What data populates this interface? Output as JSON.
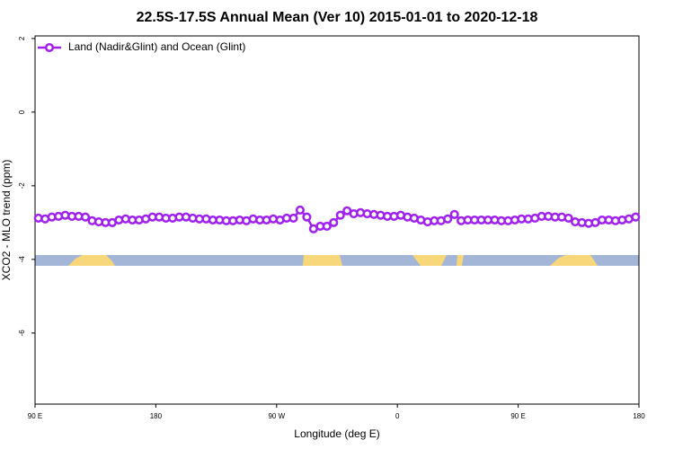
{
  "chart_data": {
    "type": "line",
    "title": "22.5S-17.5S Annual Mean (Ver 10)   2015-01-01 to 2020-12-18",
    "x_label": "Longitude (deg E)",
    "y_label": "XCO2 - MLO trend (ppm)",
    "x": [
      92.5,
      97.5,
      102.5,
      107.5,
      112.5,
      117.5,
      122.5,
      127.5,
      132.5,
      137.5,
      142.5,
      147.5,
      152.5,
      157.5,
      162.5,
      167.5,
      172.5,
      177.5,
      182.5,
      187.5,
      192.5,
      197.5,
      202.5,
      207.5,
      212.5,
      217.5,
      222.5,
      227.5,
      232.5,
      237.5,
      242.5,
      247.5,
      252.5,
      257.5,
      262.5,
      267.5,
      272.5,
      277.5,
      282.5,
      287.5,
      292.5,
      297.5,
      302.5,
      307.5,
      312.5,
      317.5,
      322.5,
      327.5,
      332.5,
      337.5,
      342.5,
      347.5,
      352.5,
      357.5,
      362.5,
      367.5,
      372.5,
      377.5,
      382.5,
      387.5,
      392.5,
      397.5,
      402.5,
      407.5,
      412.5,
      417.5,
      422.5,
      427.5,
      432.5,
      437.5,
      442.5,
      447.5,
      452.5,
      457.5,
      462.5,
      467.5,
      472.5,
      477.5,
      482.5,
      487.5,
      492.5,
      497.5,
      502.5,
      507.5,
      512.5,
      517.5,
      522.5,
      527.5,
      532.5,
      537.5
    ],
    "series": [
      {
        "name": "Land (Nadir&Glint) and Ocean (Glint)",
        "color": "#a020f0",
        "values": [
          -2.88,
          -2.9,
          -2.85,
          -2.83,
          -2.8,
          -2.83,
          -2.83,
          -2.85,
          -2.95,
          -2.98,
          -3.0,
          -3.0,
          -2.93,
          -2.9,
          -2.93,
          -2.93,
          -2.9,
          -2.85,
          -2.85,
          -2.88,
          -2.88,
          -2.85,
          -2.85,
          -2.88,
          -2.9,
          -2.9,
          -2.93,
          -2.93,
          -2.95,
          -2.95,
          -2.93,
          -2.95,
          -2.9,
          -2.93,
          -2.93,
          -2.9,
          -2.93,
          -2.88,
          -2.88,
          -2.66,
          -2.85,
          -3.17,
          -3.1,
          -3.1,
          -3.0,
          -2.8,
          -2.68,
          -2.76,
          -2.73,
          -2.76,
          -2.78,
          -2.8,
          -2.83,
          -2.83,
          -2.8,
          -2.85,
          -2.88,
          -2.93,
          -2.98,
          -2.95,
          -2.95,
          -2.9,
          -2.78,
          -2.95,
          -2.93,
          -2.93,
          -2.93,
          -2.93,
          -2.93,
          -2.95,
          -2.95,
          -2.93,
          -2.9,
          -2.9,
          -2.88,
          -2.83,
          -2.83,
          -2.85,
          -2.85,
          -2.88,
          -2.98,
          -3.0,
          -3.02,
          -3.0,
          -2.93,
          -2.93,
          -2.95,
          -2.93,
          -2.9,
          -2.85
        ]
      }
    ],
    "xlim": [
      90,
      540
    ],
    "xticks": [
      {
        "value": 90,
        "label": "90 E"
      },
      180,
      {
        "value": 270,
        "label": "90 W"
      },
      {
        "value": 360,
        "label": "0"
      },
      {
        "value": 450,
        "label": "90 E"
      },
      {
        "value": 540,
        "label": "180"
      }
    ],
    "ylim": [
      -7.93,
      2.07
    ],
    "yticks": [
      -6,
      -4,
      -2,
      0,
      2
    ],
    "legend": "upper left"
  }
}
